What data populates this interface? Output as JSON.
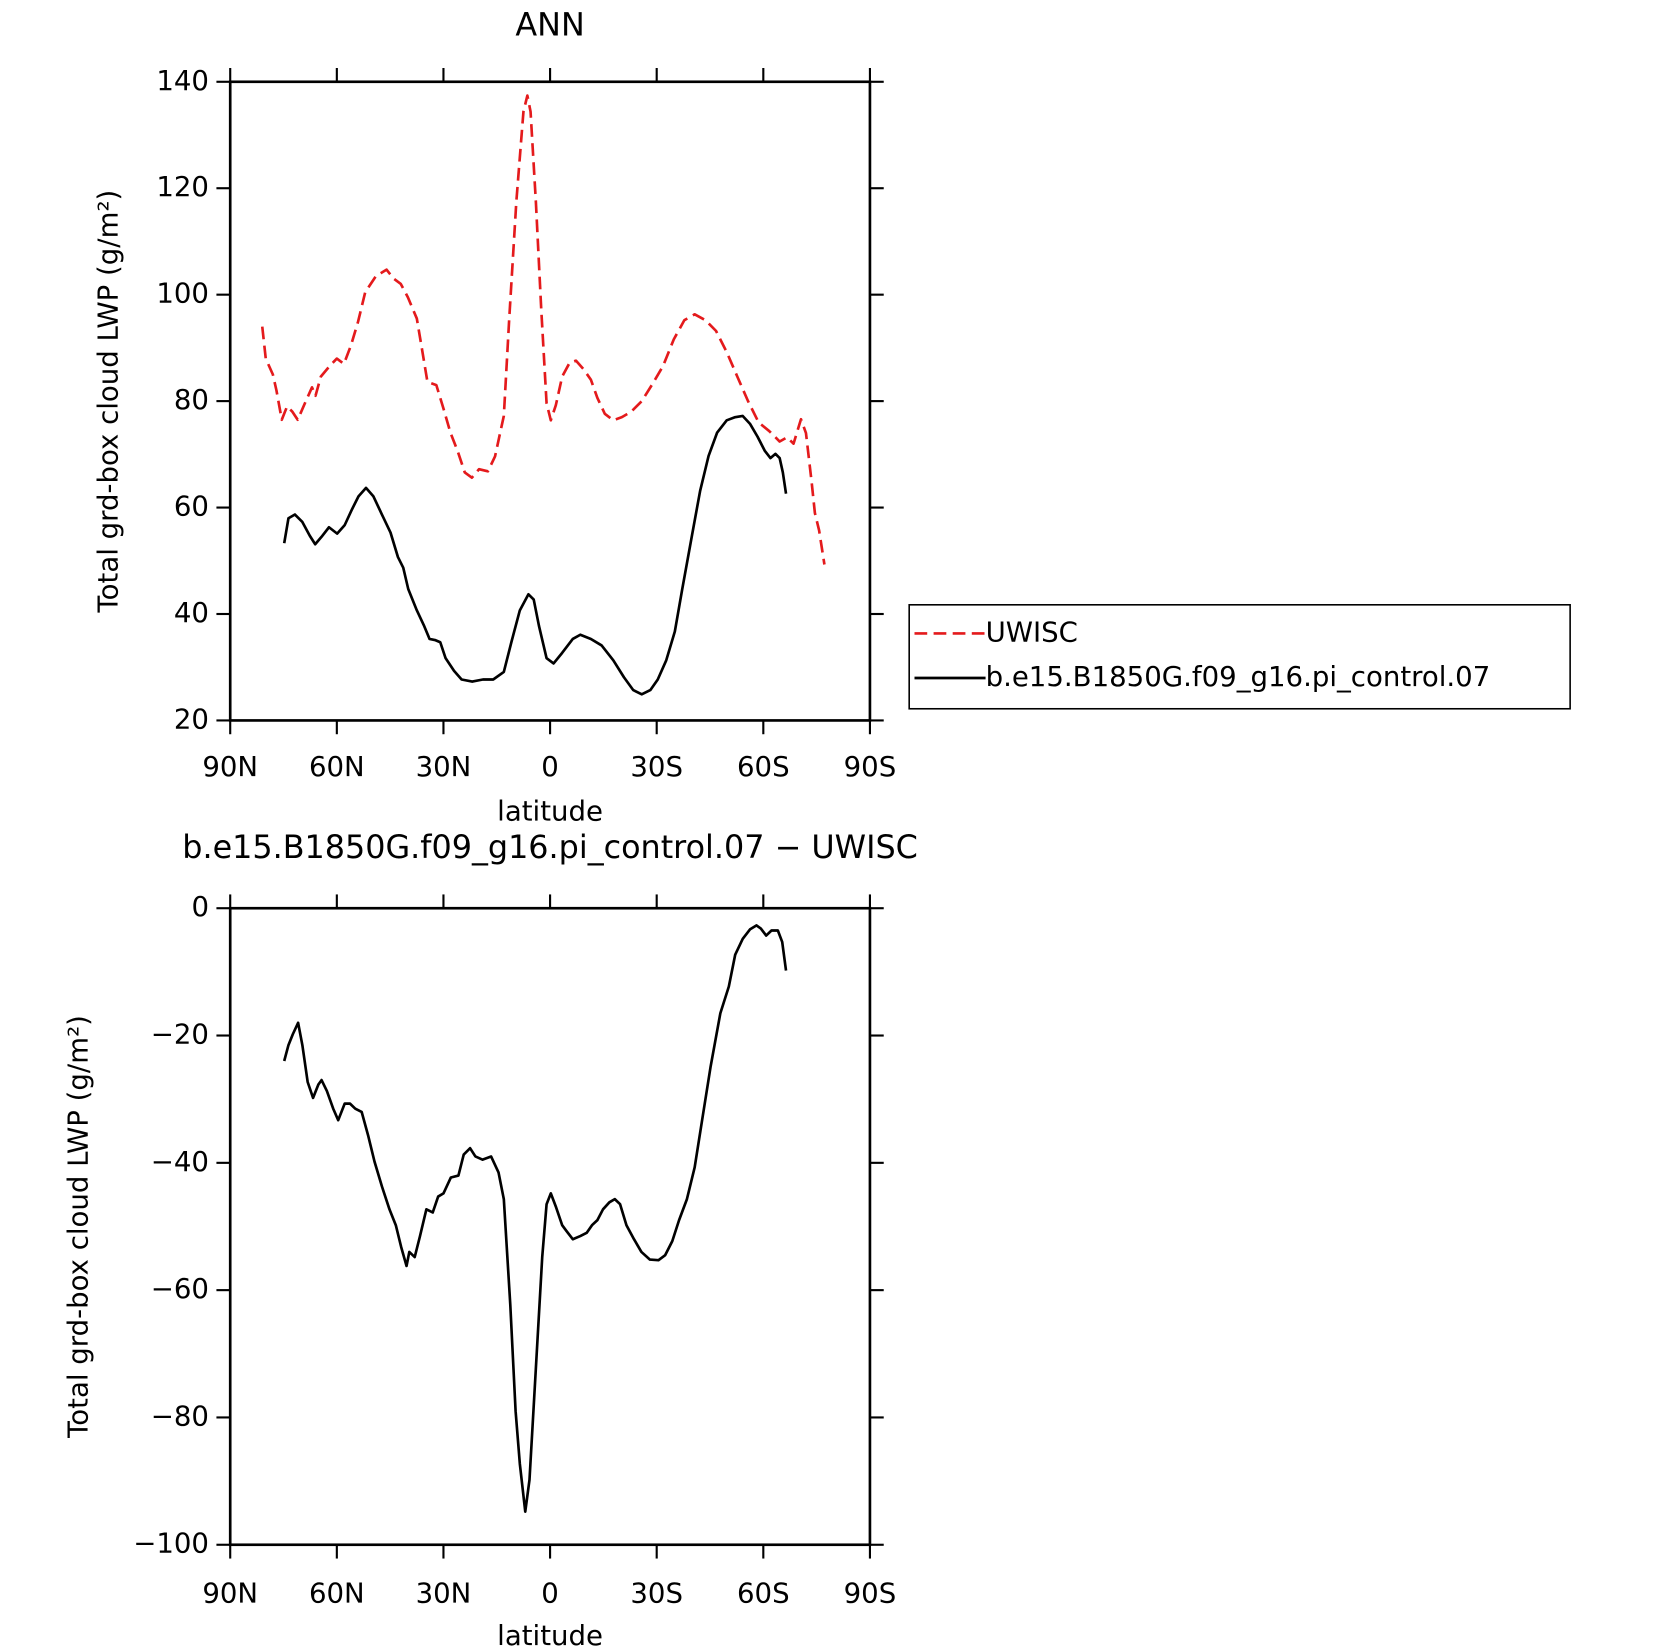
{
  "chart_data": [
    {
      "type": "line",
      "title": "ANN",
      "xlabel": "latitude",
      "ylabel": "Total grd-box cloud LWP (g/m²)",
      "xlim": [
        90,
        -90
      ],
      "xticks": [
        {
          "value": 90,
          "label": "90N"
        },
        {
          "value": 60,
          "label": "60N"
        },
        {
          "value": 30,
          "label": "30N"
        },
        0,
        {
          "value": -30,
          "label": "30S"
        },
        {
          "value": -60,
          "label": "60S"
        },
        {
          "value": -90,
          "label": "90S"
        }
      ],
      "ylim": [
        20,
        140
      ],
      "yticks": [
        20,
        40,
        60,
        80,
        100,
        120,
        140
      ],
      "series": [
        {
          "name": "UWISC",
          "color": "#e41a1c",
          "dashed": true,
          "x": [
            81,
            80,
            78,
            77,
            75.5,
            74,
            72.5,
            71,
            69,
            67,
            66,
            64.5,
            62,
            60,
            58,
            56,
            54,
            52,
            49,
            46,
            44,
            42,
            40,
            37.5,
            36,
            34.5,
            32,
            30,
            28,
            26,
            24,
            22,
            20,
            17.5,
            15.5,
            13,
            11.5,
            9.5,
            7.5,
            6.4,
            5.5,
            4,
            2.5,
            1,
            -0.2,
            -1.6,
            -3.4,
            -5.5,
            -7.3,
            -9.4,
            -11.5,
            -13.3,
            -15.4,
            -17.8,
            -20.2,
            -22.8,
            -25.8,
            -28.8,
            -31.8,
            -34.8,
            -37.8,
            -40.7,
            -43.7,
            -46.7,
            -49.7,
            -52.7,
            -55.7,
            -58.7,
            -61.6,
            -64.6,
            -66.7,
            -68.5,
            -70.6,
            -72,
            -73.6,
            -74.5,
            -75.7,
            -77.2
          ],
          "values": [
            94,
            88,
            85,
            82,
            76.5,
            79,
            78,
            76.5,
            79.6,
            82.6,
            81,
            84.6,
            86.6,
            88,
            87,
            90.5,
            95,
            100.5,
            103.5,
            104.7,
            103,
            102,
            99.5,
            95.5,
            89.6,
            83.6,
            83,
            78.6,
            74,
            70.6,
            66.6,
            65.6,
            67.2,
            66.8,
            69.6,
            77.2,
            95.5,
            117.5,
            134.4,
            137.4,
            134.4,
            117.5,
            97.5,
            79.6,
            76.4,
            79.2,
            84.6,
            87.2,
            87.6,
            86,
            84,
            80.6,
            77.6,
            76.4,
            77,
            78,
            80,
            83.2,
            86.6,
            91.6,
            95.2,
            96.3,
            95.2,
            93.2,
            89.2,
            84.6,
            80,
            76,
            74.4,
            72.4,
            73.2,
            72,
            76.6,
            74,
            64.7,
            59,
            55.7,
            49.3
          ]
        },
        {
          "name": "b.e15.B1850G.f09_g16.pi_control.07",
          "color": "#000000",
          "dashed": false,
          "x": [
            74.8,
            73.6,
            71.8,
            69.7,
            67.6,
            66.1,
            64.3,
            62.2,
            59.9,
            57.8,
            55.7,
            53.9,
            51.8,
            49.7,
            47.3,
            44.9,
            42.8,
            41.3,
            39.9,
            37.5,
            35.4,
            33.9,
            32.4,
            30.9,
            29.4,
            27,
            24.9,
            21.9,
            18.9,
            16,
            13,
            10.9,
            8.5,
            6.1,
            4.6,
            3.1,
            1,
            -1,
            -3.4,
            -6.4,
            -8.5,
            -11.5,
            -14.5,
            -17.8,
            -20.8,
            -23.4,
            -25.8,
            -28.2,
            -30.3,
            -32.7,
            -35.1,
            -37.2,
            -39.9,
            -42.2,
            -44.6,
            -47,
            -49.7,
            -52.1,
            -54.2,
            -56.3,
            -58.4,
            -60.4,
            -62,
            -63.4,
            -64.6,
            -65.5,
            -66.4
          ],
          "values": [
            53.3,
            58,
            58.7,
            57.3,
            54.7,
            53.1,
            54.5,
            56.3,
            55.1,
            56.7,
            59.7,
            62.1,
            63.7,
            62.1,
            58.7,
            55.3,
            50.7,
            48.7,
            44.7,
            40.7,
            37.7,
            35.3,
            35.1,
            34.7,
            31.7,
            29.3,
            27.7,
            27.3,
            27.7,
            27.7,
            29.1,
            34.7,
            40.7,
            43.7,
            42.7,
            37.7,
            31.7,
            30.7,
            32.7,
            35.3,
            36.1,
            35.3,
            34.1,
            31.3,
            28.1,
            25.7,
            24.9,
            25.7,
            27.7,
            31.3,
            36.7,
            44.7,
            54.7,
            63.1,
            69.7,
            74.1,
            76.4,
            77,
            77.2,
            75.7,
            73.3,
            70.7,
            69.3,
            70.1,
            69.3,
            66.6,
            62.6
          ]
        }
      ]
    },
    {
      "type": "line",
      "title": "b.e15.B1850G.f09_g16.pi_control.07 − UWISC",
      "xlabel": "latitude",
      "ylabel": "Total grd-box cloud LWP (g/m²)",
      "xlim": [
        90,
        -90
      ],
      "xticks": [
        {
          "value": 90,
          "label": "90N"
        },
        {
          "value": 60,
          "label": "60N"
        },
        {
          "value": 30,
          "label": "30N"
        },
        0,
        {
          "value": -30,
          "label": "30S"
        },
        {
          "value": -60,
          "label": "60S"
        },
        {
          "value": -90,
          "label": "90S"
        }
      ],
      "ylim": [
        -100,
        0
      ],
      "yticks": [
        {
          "value": -100,
          "label": "−100"
        },
        {
          "value": -80,
          "label": "−80"
        },
        {
          "value": -60,
          "label": "−60"
        },
        {
          "value": -40,
          "label": "−40"
        },
        {
          "value": -20,
          "label": "−20"
        },
        0
      ],
      "series": [
        {
          "color": "#000000",
          "dashed": false,
          "x": [
            74.8,
            73.6,
            72.4,
            70.9,
            69.7,
            68.2,
            66.7,
            65.2,
            64.3,
            62.8,
            61,
            59.6,
            57.8,
            56.3,
            54.8,
            53,
            51.2,
            49.4,
            47.3,
            45.2,
            43.4,
            41.9,
            40.4,
            39.6,
            38.1,
            36.6,
            34.8,
            33,
            31.5,
            30,
            27.9,
            25.8,
            24.3,
            22.5,
            21,
            19,
            16.6,
            14.5,
            13,
            11.2,
            9.7,
            8.5,
            7,
            5.8,
            4,
            2.2,
            1,
            -0.2,
            -1.7,
            -3.4,
            -4.6,
            -6.4,
            -8.5,
            -10.3,
            -11.8,
            -13.3,
            -14.9,
            -16.7,
            -18.2,
            -19.7,
            -21.5,
            -23.6,
            -25.7,
            -28.1,
            -30.5,
            -32.4,
            -34.4,
            -36.3,
            -38.5,
            -40.7,
            -42.8,
            -45.2,
            -47.9,
            -50.3,
            -52.1,
            -54.2,
            -56.3,
            -58.1,
            -59.3,
            -60.8,
            -62.3,
            -64.1,
            -65.3,
            -66.4
          ],
          "values": [
            -24,
            -21.5,
            -19.8,
            -18,
            -21.5,
            -27.3,
            -29.8,
            -27.7,
            -27,
            -28.7,
            -31.5,
            -33.3,
            -30.7,
            -30.7,
            -31.5,
            -32,
            -35.7,
            -39.8,
            -43.7,
            -47.3,
            -49.8,
            -53.2,
            -56.2,
            -54,
            -54.8,
            -51.5,
            -47.3,
            -47.8,
            -45.3,
            -44.8,
            -42.3,
            -42,
            -38.7,
            -37.7,
            -39,
            -39.5,
            -39,
            -41.5,
            -45.7,
            -62.3,
            -79,
            -87.3,
            -94.8,
            -89.8,
            -72.3,
            -54.8,
            -46.5,
            -44.8,
            -47,
            -49.8,
            -50.7,
            -52,
            -51.5,
            -51,
            -49.8,
            -49,
            -47.3,
            -46.2,
            -45.7,
            -46.5,
            -49.8,
            -52,
            -54,
            -55.2,
            -55.3,
            -54.5,
            -52.3,
            -49,
            -45.7,
            -40.7,
            -33.2,
            -24.8,
            -16.5,
            -12.3,
            -7.3,
            -4.8,
            -3.3,
            -2.7,
            -3.2,
            -4.3,
            -3.5,
            -3.5,
            -5.3,
            -9.8
          ]
        }
      ]
    }
  ]
}
